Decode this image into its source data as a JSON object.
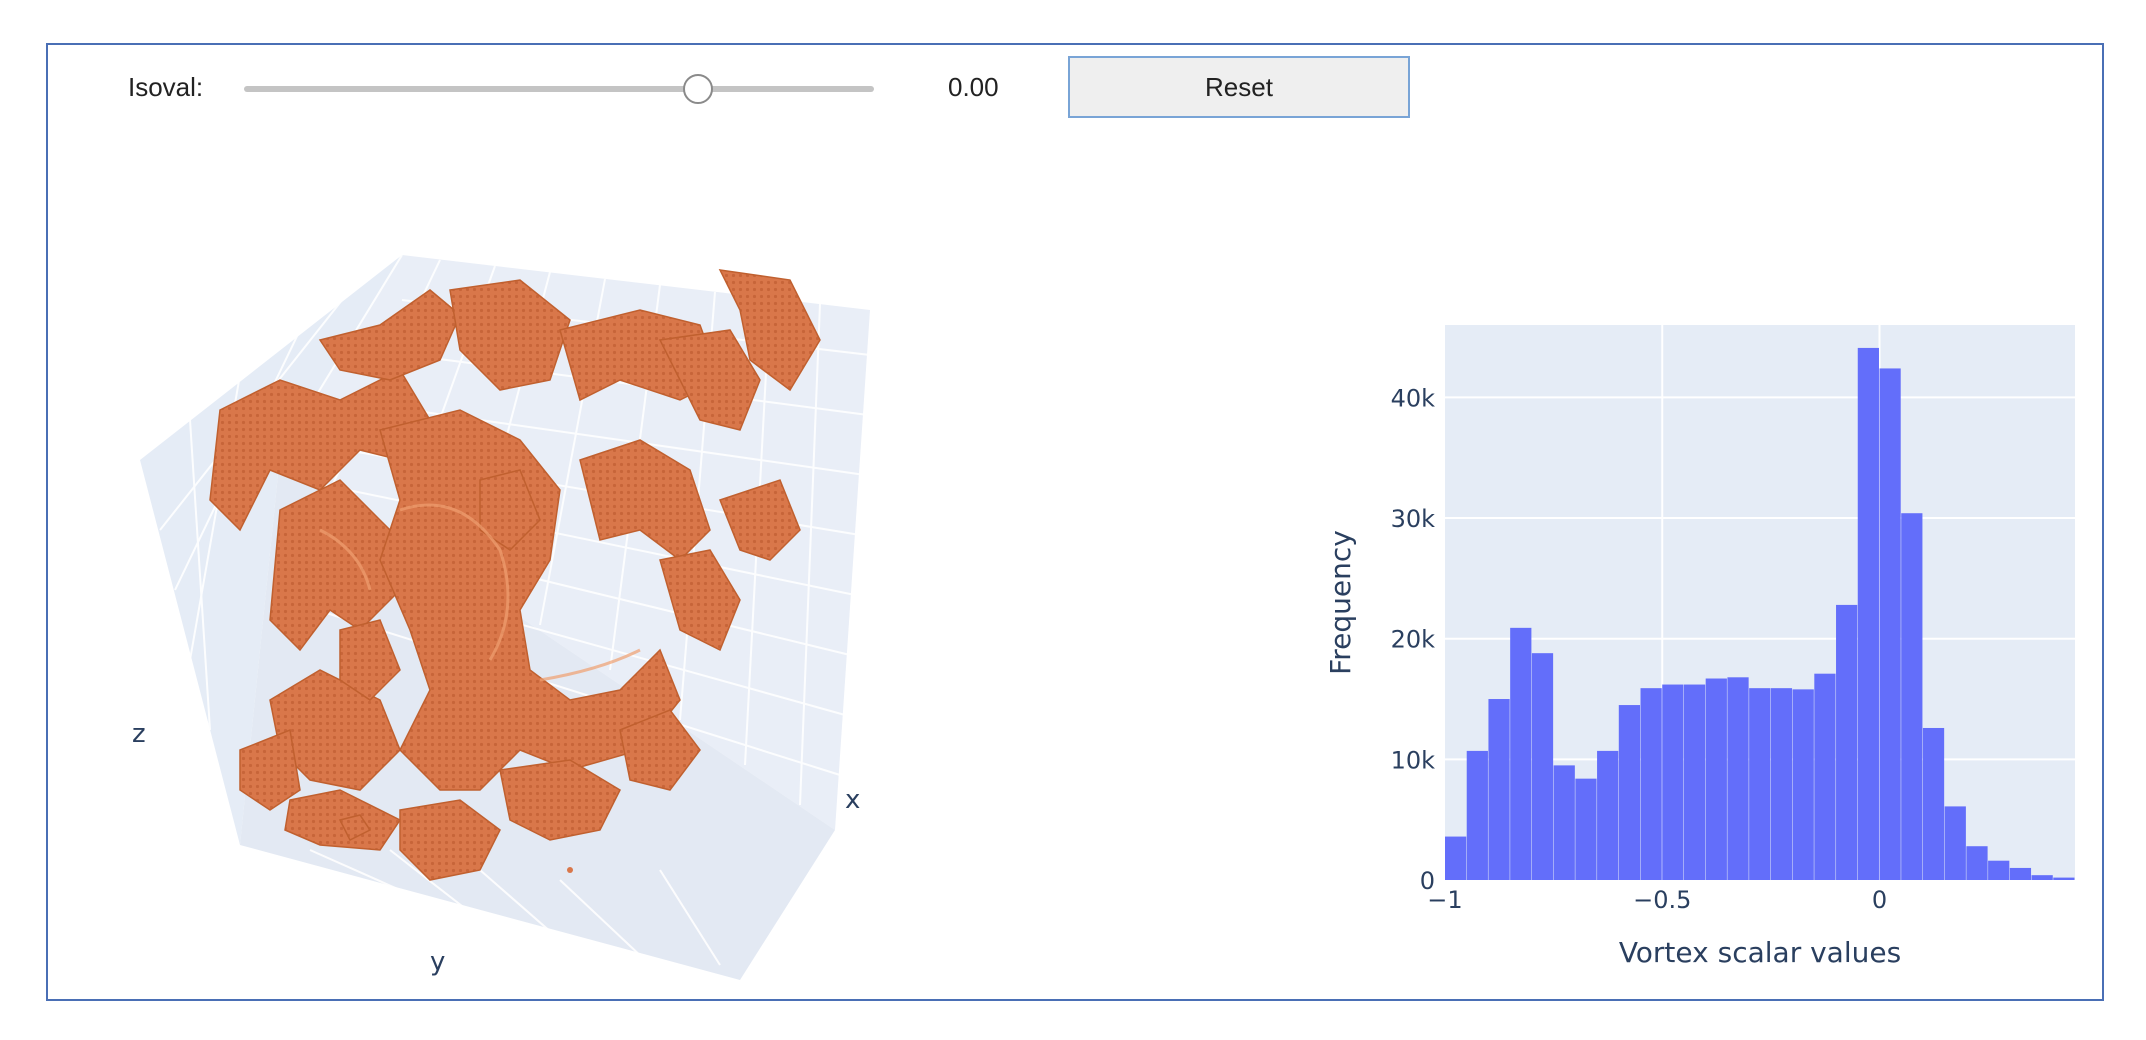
{
  "controls": {
    "isoval_label": "Isoval:",
    "isoval_value": "0.00",
    "isoval_fraction": 0.72,
    "reset_label": "Reset"
  },
  "scene3d": {
    "axis_labels": {
      "x": "x",
      "y": "y",
      "z": "z"
    },
    "surface_color": "#e0834d",
    "background_color": "#e5ecf6"
  },
  "chart_data": {
    "type": "bar",
    "title": "",
    "xlabel": "Vortex scalar values",
    "ylabel": "Frequency",
    "xlim": [
      -1,
      0.45
    ],
    "ylim": [
      0,
      46000
    ],
    "xticks": [
      -1,
      -0.5,
      0
    ],
    "xtick_labels": [
      "−1",
      "−0.5",
      "0"
    ],
    "yticks": [
      0,
      10000,
      20000,
      30000,
      40000
    ],
    "ytick_labels": [
      "0",
      "10k",
      "20k",
      "30k",
      "40k"
    ],
    "grid": true,
    "bar_color": "#636efa",
    "bin_width": 0.05,
    "bin_starts": [
      -1,
      -0.95,
      -0.9,
      -0.85,
      -0.8,
      -0.75,
      -0.7,
      -0.65,
      -0.6,
      -0.55,
      -0.5,
      -0.45,
      -0.4,
      -0.35,
      -0.3,
      -0.25,
      -0.2,
      -0.15,
      -0.1,
      -0.05,
      0,
      0.05,
      0.1,
      0.15,
      0.2,
      0.25,
      0.3,
      0.35,
      0.4
    ],
    "values": [
      3600,
      10700,
      15000,
      20900,
      18800,
      9500,
      8400,
      10700,
      14500,
      15900,
      16200,
      16200,
      16700,
      16800,
      15900,
      15900,
      15800,
      17100,
      22800,
      44100,
      42400,
      30400,
      12600,
      6100,
      2800,
      1600,
      1000,
      400,
      200
    ]
  }
}
